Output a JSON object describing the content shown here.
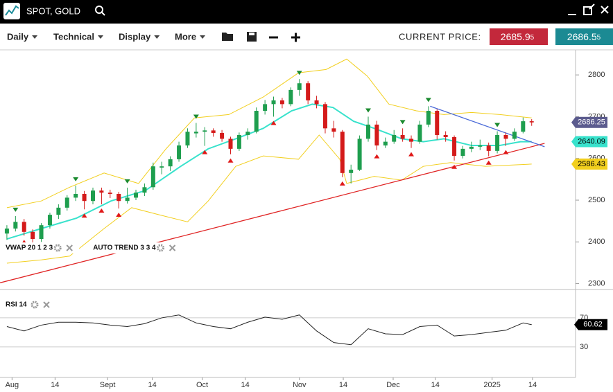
{
  "window": {
    "title": "SPOT, GOLD"
  },
  "toolbar": {
    "menus": [
      "Daily",
      "Technical",
      "Display",
      "More"
    ],
    "price_label": "CURRENT PRICE:",
    "bid": {
      "main": "2685.9",
      "small": "5"
    },
    "ask": {
      "main": "2686.5",
      "small": "5"
    }
  },
  "chart_data": [
    {
      "type": "candlestick",
      "indicators": [
        "VWAP 20 1 2 3",
        "AUTO TREND 3 3 4"
      ],
      "up_color": "#1e9e4e",
      "down_color": "#d41a1a",
      "last_tag_color": "#5b5b8e",
      "xlim": [
        -0.8,
        66.1
      ],
      "ylim": [
        2286,
        2860
      ],
      "yticks": [
        2300,
        2400,
        2500,
        2600,
        2700,
        2800
      ],
      "xticks": [
        {
          "value": 0.6,
          "label": "Aug"
        },
        {
          "value": 5.6,
          "label": "14"
        },
        {
          "value": 11.7,
          "label": "Sept"
        },
        {
          "value": 16.9,
          "label": "14"
        },
        {
          "value": 22.7,
          "label": "Oct"
        },
        {
          "value": 27.7,
          "label": "14"
        },
        {
          "value": 34,
          "label": "Nov"
        },
        {
          "value": 39.1,
          "label": "14"
        },
        {
          "value": 44.9,
          "label": "Dec"
        },
        {
          "value": 49.8,
          "label": "14"
        },
        {
          "value": 56.4,
          "label": "2025"
        },
        {
          "value": 61.1,
          "label": "14"
        }
      ],
      "candles": [
        [
          2420,
          2440,
          2405,
          2432
        ],
        [
          2432,
          2462,
          2425,
          2448
        ],
        [
          2448,
          2455,
          2415,
          2424
        ],
        [
          2424,
          2430,
          2392,
          2407
        ],
        [
          2407,
          2445,
          2400,
          2440
        ],
        [
          2440,
          2470,
          2432,
          2465
        ],
        [
          2465,
          2490,
          2455,
          2482
        ],
        [
          2482,
          2512,
          2475,
          2506
        ],
        [
          2506,
          2535,
          2498,
          2515
        ],
        [
          2515,
          2522,
          2478,
          2498
        ],
        [
          2498,
          2530,
          2490,
          2523
        ],
        [
          2523,
          2530,
          2490,
          2518
        ],
        [
          2518,
          2525,
          2505,
          2515
        ],
        [
          2515,
          2520,
          2480,
          2498
        ],
        [
          2498,
          2530,
          2492,
          2506
        ],
        [
          2506,
          2525,
          2500,
          2518
        ],
        [
          2518,
          2540,
          2510,
          2531
        ],
        [
          2531,
          2590,
          2525,
          2581
        ],
        [
          2578,
          2592,
          2562,
          2581
        ],
        [
          2581,
          2605,
          2570,
          2598
        ],
        [
          2598,
          2640,
          2592,
          2631
        ],
        [
          2631,
          2672,
          2625,
          2664
        ],
        [
          2660,
          2685,
          2650,
          2664
        ],
        [
          2664,
          2675,
          2630,
          2667
        ],
        [
          2667,
          2672,
          2652,
          2661
        ],
        [
          2661,
          2668,
          2640,
          2647
        ],
        [
          2647,
          2652,
          2610,
          2623
        ],
        [
          2623,
          2662,
          2618,
          2656
        ],
        [
          2656,
          2672,
          2645,
          2664
        ],
        [
          2664,
          2722,
          2660,
          2714
        ],
        [
          2714,
          2740,
          2705,
          2730
        ],
        [
          2730,
          2748,
          2700,
          2739
        ],
        [
          2739,
          2745,
          2720,
          2730
        ],
        [
          2730,
          2770,
          2725,
          2764
        ],
        [
          2764,
          2790,
          2750,
          2780
        ],
        [
          2780,
          2785,
          2730,
          2739
        ],
        [
          2739,
          2750,
          2720,
          2730
        ],
        [
          2730,
          2735,
          2660,
          2672
        ],
        [
          2672,
          2690,
          2650,
          2664
        ],
        [
          2664,
          2668,
          2555,
          2565
        ],
        [
          2565,
          2585,
          2540,
          2573
        ],
        [
          2573,
          2655,
          2570,
          2647
        ],
        [
          2647,
          2700,
          2640,
          2681
        ],
        [
          2681,
          2690,
          2620,
          2631
        ],
        [
          2631,
          2650,
          2625,
          2640
        ],
        [
          2640,
          2668,
          2635,
          2656
        ],
        [
          2656,
          2672,
          2640,
          2647
        ],
        [
          2647,
          2655,
          2625,
          2640
        ],
        [
          2640,
          2690,
          2635,
          2681
        ],
        [
          2681,
          2725,
          2675,
          2714
        ],
        [
          2714,
          2718,
          2645,
          2656
        ],
        [
          2656,
          2665,
          2640,
          2651
        ],
        [
          2651,
          2655,
          2595,
          2606
        ],
        [
          2606,
          2630,
          2600,
          2623
        ],
        [
          2623,
          2640,
          2615,
          2628
        ],
        [
          2628,
          2645,
          2620,
          2631
        ],
        [
          2631,
          2638,
          2605,
          2618
        ],
        [
          2618,
          2665,
          2612,
          2656
        ],
        [
          2656,
          2662,
          2630,
          2647
        ],
        [
          2647,
          2672,
          2642,
          2664
        ],
        [
          2664,
          2698,
          2660,
          2689
        ],
        [
          2689,
          2694,
          2678,
          2686.25
        ]
      ],
      "pivot_highs": [
        1,
        8,
        14,
        22,
        34,
        42,
        46,
        49,
        57
      ],
      "pivot_lows": [
        2,
        9,
        11,
        13,
        23,
        26,
        31,
        39,
        43,
        47,
        52,
        56,
        58
      ],
      "series": [
        {
          "color": "#f2cf1e",
          "x": [
            0,
            4,
            7.3,
            11.3,
            15.3,
            18.5,
            21.8,
            25.8,
            29.8,
            33.9,
            37.1,
            39.5,
            41.9,
            44.4,
            47.6,
            50.8,
            54,
            57.3,
            61
          ],
          "values": [
            2482,
            2498,
            2531,
            2565,
            2540,
            2623,
            2697,
            2705,
            2747,
            2805,
            2813,
            2838,
            2797,
            2730,
            2714,
            2705,
            2710,
            2705,
            2697
          ]
        },
        {
          "color": "#f2cf1e",
          "label_last": true,
          "x": [
            0,
            4,
            7.3,
            11.3,
            14.5,
            17.7,
            21,
            23.4,
            26.6,
            29.8,
            33.9,
            36.3,
            38.7,
            39.5,
            42.7,
            45.9,
            48.4,
            51.6,
            55.6,
            61
          ],
          "values": [
            2349,
            2357,
            2366,
            2432,
            2482,
            2465,
            2448,
            2498,
            2581,
            2606,
            2598,
            2656,
            2598,
            2540,
            2557,
            2548,
            2581,
            2590,
            2581,
            2586.43
          ]
        },
        {
          "color": "#38e2cc",
          "label_last": true,
          "x": [
            0,
            4,
            8.1,
            12.1,
            16.1,
            20.2,
            23.4,
            26.6,
            29.8,
            33.1,
            35.5,
            37.9,
            40.3,
            42.7,
            45.9,
            48.4,
            50.8,
            54,
            57.3,
            59.7,
            61
          ],
          "values": [
            2407,
            2432,
            2457,
            2498,
            2523,
            2581,
            2623,
            2647,
            2672,
            2714,
            2730,
            2722,
            2689,
            2672,
            2647,
            2640,
            2647,
            2631,
            2631,
            2640,
            2640.09
          ]
        }
      ],
      "trendlines": [
        {
          "color": "#e02424",
          "x": [
            -0.8,
            62.5
          ],
          "values": [
            2302,
            2636
          ]
        },
        {
          "color": "#4a6ad8",
          "x": [
            49.2,
            62.5
          ],
          "values": [
            2725,
            2628
          ]
        }
      ]
    },
    {
      "type": "line",
      "title": "RSI 14",
      "color": "#222222",
      "xlim": [
        -0.8,
        66.1
      ],
      "ylim": [
        -12,
        109
      ],
      "yticks": [
        30,
        70
      ],
      "grid": true,
      "x": [
        0,
        2,
        4,
        6,
        8,
        10,
        12,
        14,
        16,
        18,
        20,
        22,
        24,
        26,
        28,
        30,
        32,
        34,
        36,
        38,
        40,
        42,
        44,
        46,
        48,
        50,
        52,
        54,
        56,
        58,
        60,
        61
      ],
      "values": [
        58,
        52,
        60,
        64,
        64,
        63,
        60,
        58,
        62,
        70,
        74,
        63,
        58,
        55,
        64,
        71,
        68,
        74,
        52,
        36,
        33,
        55,
        48,
        47,
        58,
        60,
        45,
        47,
        50,
        53,
        63,
        60.62
      ]
    }
  ]
}
